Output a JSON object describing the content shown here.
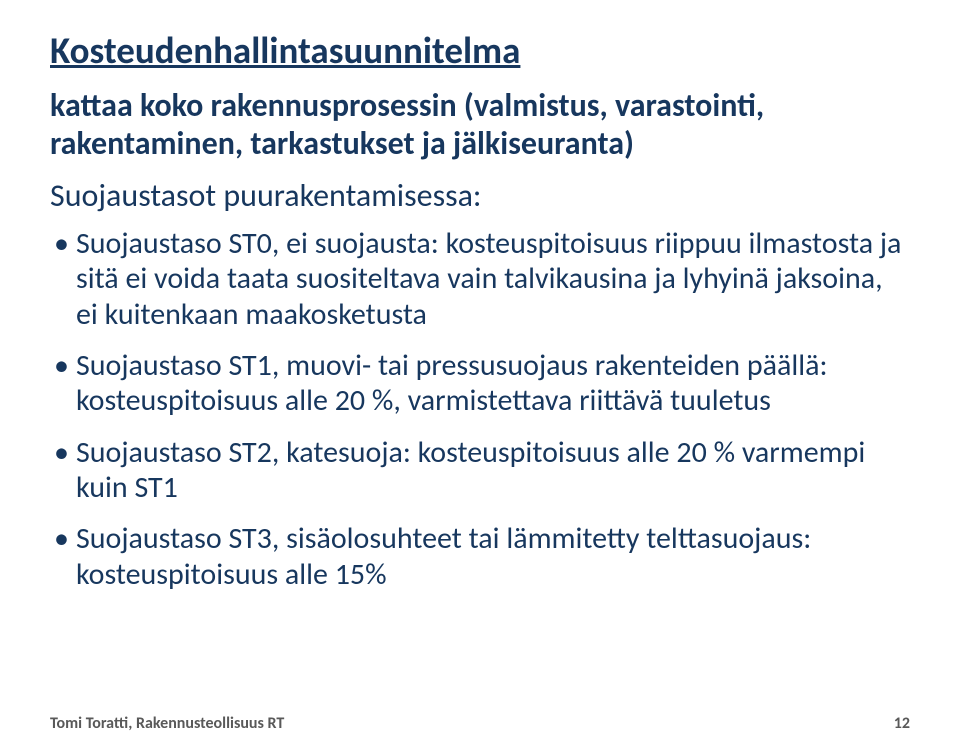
{
  "title": "Kosteudenhallintasuunnitelma",
  "subtitle": "kattaa koko rakennusprosessin (valmistus, varastointi, rakentaminen, tarkastukset ja jälkiseuranta)",
  "levelLabel": "Suojaustasot puurakentamisessa:",
  "levels": [
    "Suojaustaso ST0, ei suojausta: kosteuspitoisuus riippuu ilmastosta ja sitä ei voida taata suositeltava vain talvikausina ja lyhyinä jaksoina, ei kuitenkaan maakosketusta",
    "Suojaustaso ST1, muovi- tai pressusuojaus rakenteiden päällä: kosteuspitoisuus alle 20 %, varmistettava riittävä tuuletus",
    "Suojaustaso ST2, katesuoja: kosteuspitoisuus alle 20 % varmempi kuin ST1",
    "Suojaustaso ST3, sisäolosuhteet tai lämmitetty telttasuojaus: kosteuspitoisuus alle 15%"
  ],
  "footer": {
    "author": "Tomi Toratti, Rakennusteollisuus RT",
    "page": "12"
  },
  "colors": {
    "text": "#17375e",
    "footer": "#595959",
    "background": "#ffffff"
  }
}
